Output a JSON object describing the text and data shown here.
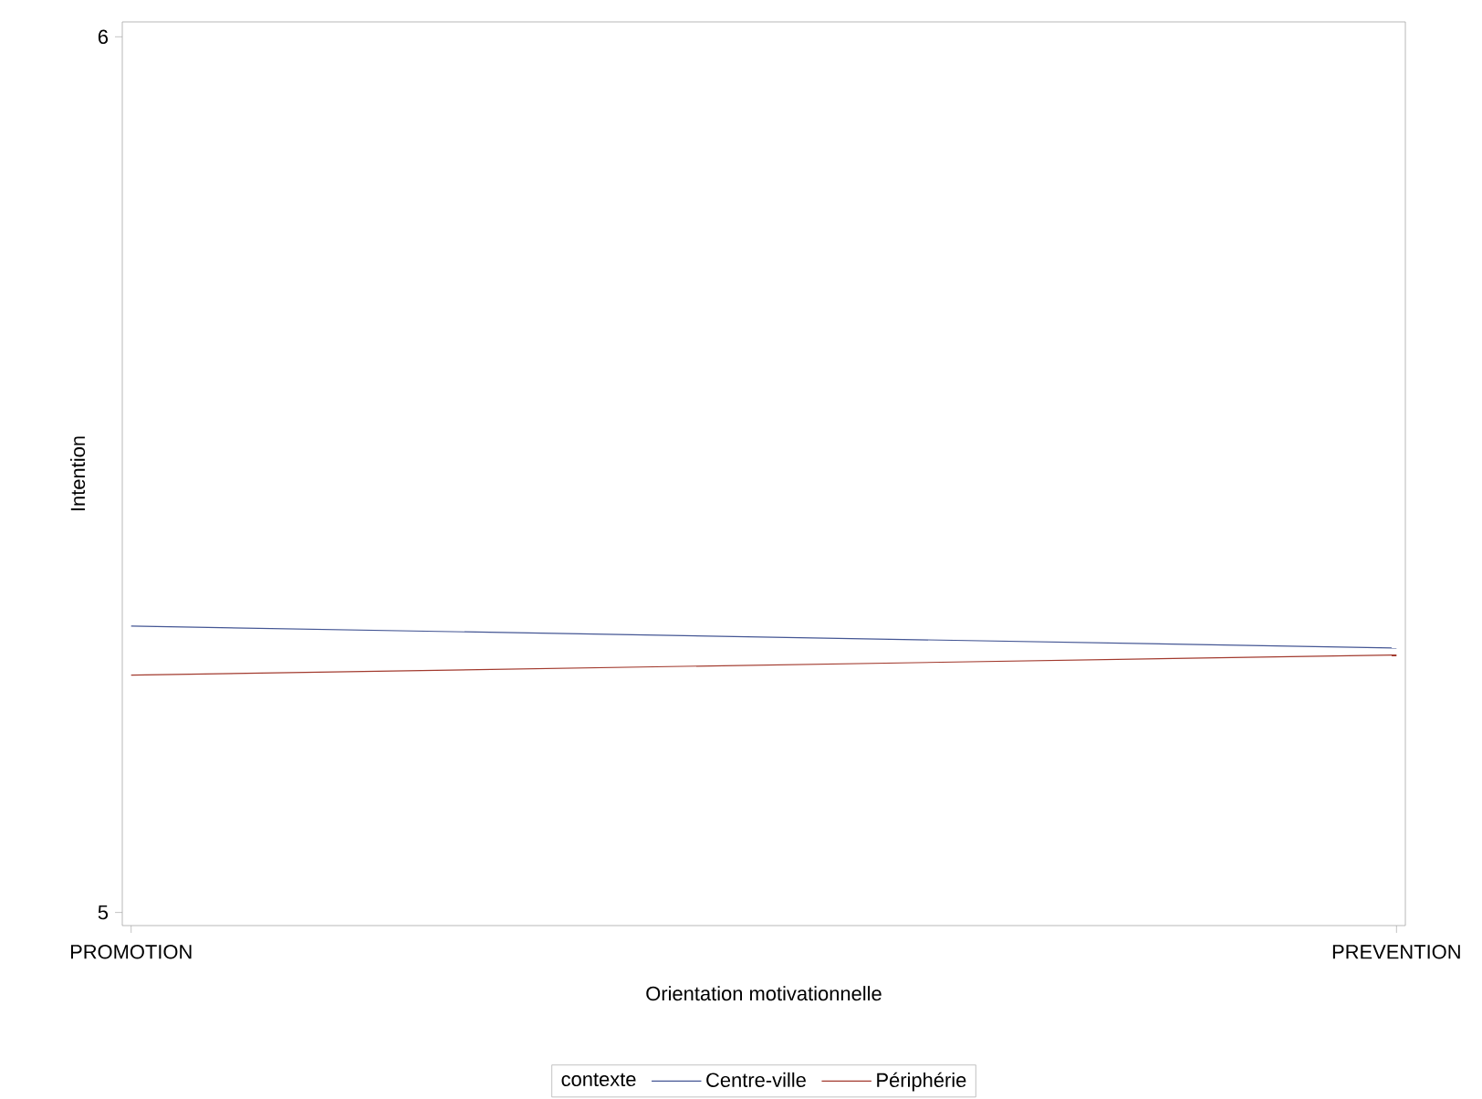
{
  "chart_data": {
    "type": "line",
    "xlabel": "Orientation motivationnelle",
    "ylabel": "Intention",
    "legend_title": "contexte",
    "legend": "bottom",
    "categories": [
      "PROMOTION",
      "PREVENTION"
    ],
    "series": [
      {
        "name": "Centre-ville",
        "color": "#445694",
        "values": [
          5.327,
          5.302
        ]
      },
      {
        "name": "Périphérie",
        "color": "#a23a2e",
        "values": [
          5.271,
          5.294
        ]
      }
    ],
    "ylim": [
      4.985,
      6.017
    ],
    "yticks": [
      5,
      6
    ],
    "marker": "none",
    "line_style": "solid",
    "grid": false
  }
}
